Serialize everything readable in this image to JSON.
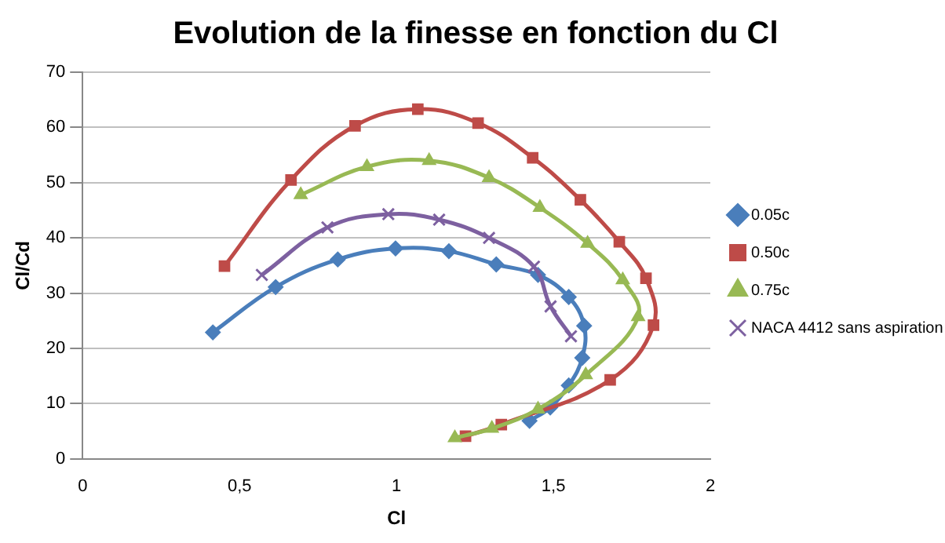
{
  "chart_data": {
    "type": "line",
    "title": "Evolution de la finesse en fonction du Cl",
    "xlabel": "Cl",
    "ylabel": "Cl/Cd",
    "xlim": [
      0,
      2
    ],
    "xticks": [
      0,
      {
        "value": 0.5,
        "label": "0,5"
      },
      1,
      {
        "value": 1.5,
        "label": "1,5"
      },
      2
    ],
    "ylim": [
      0,
      70
    ],
    "yticks": [
      0,
      10,
      20,
      30,
      40,
      50,
      60,
      70
    ],
    "grid": "y",
    "legend": "right",
    "series": [
      {
        "name": "0.05c",
        "color": "#4a7ebb",
        "marker": "diamond",
        "x": [
          0.415,
          0.615,
          0.813,
          0.997,
          1.167,
          1.318,
          1.451,
          1.549,
          1.598,
          1.592,
          1.549,
          1.49,
          1.424
        ],
        "values": [
          22.9,
          31.1,
          36.1,
          38.1,
          37.6,
          35.2,
          33.3,
          29.3,
          24.1,
          18.3,
          13.3,
          9.3,
          6.9
        ]
      },
      {
        "name": "0.50c",
        "color": "#be4b48",
        "marker": "square",
        "x": [
          0.452,
          0.664,
          0.868,
          1.068,
          1.26,
          1.434,
          1.586,
          1.71,
          1.795,
          1.819,
          1.681,
          1.334,
          1.22
        ],
        "values": [
          34.9,
          50.5,
          60.3,
          63.3,
          60.8,
          54.5,
          46.9,
          39.3,
          32.7,
          24.2,
          14.3,
          6.2,
          4.1
        ]
      },
      {
        "name": "0.75c",
        "color": "#98b954",
        "marker": "triangle",
        "x": [
          0.695,
          0.906,
          1.104,
          1.295,
          1.457,
          1.609,
          1.721,
          1.77,
          1.603,
          1.451,
          1.304,
          1.186
        ],
        "values": [
          47.8,
          52.9,
          54.0,
          50.9,
          45.5,
          39.0,
          32.4,
          25.7,
          15.2,
          9.0,
          5.5,
          3.8
        ]
      },
      {
        "name": "NACA 4412 sans aspiration",
        "color": "#7d60a0",
        "marker": "cross",
        "x": [
          0.571,
          0.78,
          0.974,
          1.136,
          1.295,
          1.438,
          1.491,
          1.556
        ],
        "values": [
          33.3,
          41.9,
          44.3,
          43.3,
          40.0,
          34.8,
          27.6,
          22.2
        ]
      }
    ]
  }
}
